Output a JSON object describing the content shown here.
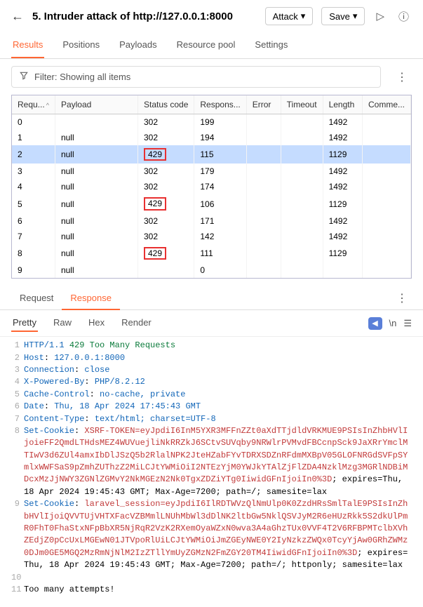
{
  "header": {
    "title": "5. Intruder attack of http://127.0.0.1:8000",
    "attack_btn": "Attack",
    "save_btn": "Save"
  },
  "tabs": [
    "Results",
    "Positions",
    "Payloads",
    "Resource pool",
    "Settings"
  ],
  "active_tab": 0,
  "filter": {
    "text": "Filter: Showing all items"
  },
  "table": {
    "columns": [
      "Requ...",
      "Payload",
      "Status code",
      "Respons...",
      "Error",
      "Timeout",
      "Length",
      "Comme..."
    ],
    "rows": [
      {
        "req": "0",
        "payload": "",
        "status": "302",
        "resp": "199",
        "err": "",
        "timeout": "",
        "len": "1492",
        "sel": false,
        "box": false
      },
      {
        "req": "1",
        "payload": "null",
        "status": "302",
        "resp": "194",
        "err": "",
        "timeout": "",
        "len": "1492",
        "sel": false,
        "box": false
      },
      {
        "req": "2",
        "payload": "null",
        "status": "429",
        "resp": "115",
        "err": "",
        "timeout": "",
        "len": "1129",
        "sel": true,
        "box": true
      },
      {
        "req": "3",
        "payload": "null",
        "status": "302",
        "resp": "179",
        "err": "",
        "timeout": "",
        "len": "1492",
        "sel": false,
        "box": false
      },
      {
        "req": "4",
        "payload": "null",
        "status": "302",
        "resp": "174",
        "err": "",
        "timeout": "",
        "len": "1492",
        "sel": false,
        "box": false
      },
      {
        "req": "5",
        "payload": "null",
        "status": "429",
        "resp": "106",
        "err": "",
        "timeout": "",
        "len": "1129",
        "sel": false,
        "box": true
      },
      {
        "req": "6",
        "payload": "null",
        "status": "302",
        "resp": "171",
        "err": "",
        "timeout": "",
        "len": "1492",
        "sel": false,
        "box": false
      },
      {
        "req": "7",
        "payload": "null",
        "status": "302",
        "resp": "142",
        "err": "",
        "timeout": "",
        "len": "1492",
        "sel": false,
        "box": false
      },
      {
        "req": "8",
        "payload": "null",
        "status": "429",
        "resp": "111",
        "err": "",
        "timeout": "",
        "len": "1129",
        "sel": false,
        "box": true
      },
      {
        "req": "9",
        "payload": "null",
        "status": "",
        "resp": "0",
        "err": "",
        "timeout": "",
        "len": "",
        "sel": false,
        "box": false
      }
    ]
  },
  "sub_tabs": [
    "Request",
    "Response"
  ],
  "active_sub_tab": 1,
  "view_tabs": [
    "Pretty",
    "Raw",
    "Hex",
    "Render"
  ],
  "active_view_tab": 0,
  "response": {
    "lines": [
      {
        "n": 1,
        "html": "<span class='k'>HTTP/1.1</span> <span class='t'>429 Too Many Requests</span>"
      },
      {
        "n": 2,
        "html": "<span class='k'>Host</span>: <span class='v'>127.0.0.1:8000</span>"
      },
      {
        "n": 3,
        "html": "<span class='k'>Connection</span>: <span class='v'>close</span>"
      },
      {
        "n": 4,
        "html": "<span class='k'>X-Powered-By</span>: <span class='v'>PHP/8.2.12</span>"
      },
      {
        "n": 5,
        "html": "<span class='k'>Cache-Control</span>: <span class='v'>no-cache, private</span>"
      },
      {
        "n": 6,
        "html": "<span class='k'>Date</span>: <span class='v'>Thu, 18 Apr 2024 17:45:43 GMT</span>"
      },
      {
        "n": 7,
        "html": "<span class='k'>Content-Type</span>: <span class='v'>text/html; charset=UTF-8</span>"
      },
      {
        "n": 8,
        "html": "<span class='k'>Set-Cookie</span>: <span class='cookie'>XSRF-TOKEN=eyJpdiI6InM5YXR3MFFnZZt0aXdTTjdldVRKMUE9PSIsInZhbHVlIjoieFF2QmdLTHdsMEZ4WUVuejliNkRRZkJ6SCtvSUVqby9NRWlrPVMvdFBCcnpSck9JaXRrYmclMTIwV3d6ZUl4amxIbDlJSzQ5b2RlalNPK2JteHZabFYvTDRXSDZnRFdmMXBpV05GLOFNRGdSVFpSYmlxWWFSaS9pZmhZUThzZ2MiLCJtYWMiOiI2NTEzYjM0YWJkYTAlZjFlZDA4NzklMzg3MGRlNDBiMDcxMzJjNWY3ZGNlZGMvY2NkMGEzN2Nk0TgxZDZiYTg0IiwidGFnIjoiIn0%3D</span>; expires=Thu, 18 Apr 2024 19:45:43 GMT; Max-Age=7200; path=/; samesite=lax"
      },
      {
        "n": 9,
        "html": "<span class='k'>Set-Cookie</span>: <span class='cookie'>laravel_session=eyJpdiI6IlRDTWVzQlNmUlp0K0ZzdHRsSmlTalE9PSIsInZhbHVlIjoiQVVTUjVHTXFacVZBMmlLNUhMbWl3dDlNK2ltbGw5NklQSVJyM2R6eHUzRkk5S2dkUlPmR0FhT0FhaStxNFpBbXR5NjRqR2VzK2RXemOyaWZxN0wva3A4aGhzTUx0VVF4T2V6RFBPMTclbXVhZEdjZ0pCcUxLMGEwN01JTVpoRlUiLCJtYWMiOiJmZGEyNWE0Y2IyNzkzZWQx0TcyYjAw0GRhZWMz0DJm0GE5MGQ2MzRmNjNlM2IzZTllYmUyZGMzN2FmZGY20TM4IiwidGFnIjoiIn0%3D</span>; expires=Thu, 18 Apr 2024 19:45:43 GMT; Max-Age=7200; path=/; httponly; samesite=lax"
      },
      {
        "n": 10,
        "html": ""
      },
      {
        "n": 11,
        "html": "Too many attempts!"
      }
    ]
  }
}
